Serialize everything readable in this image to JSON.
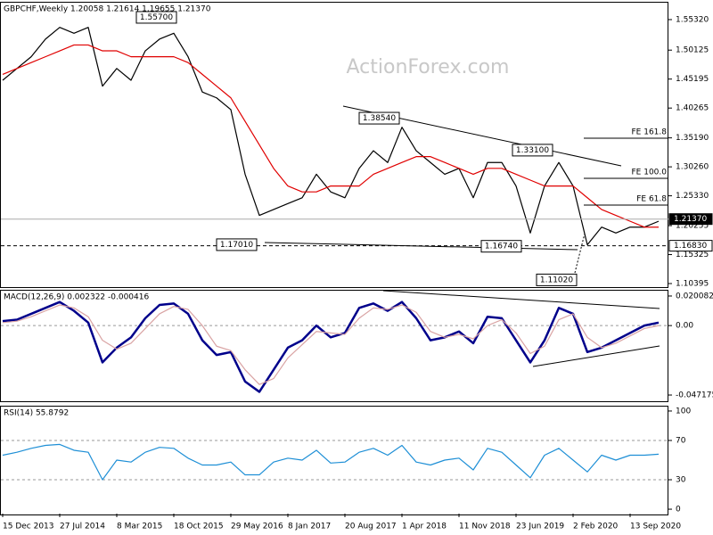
{
  "chart_data": [
    {
      "type": "line",
      "title": "GBPCHF,Weekly  1.20058 1.21614 1.19655 1.21370",
      "watermark": "ActionForex.com",
      "ylim": [
        1.0979,
        1.582
      ],
      "yticks": [
        {
          "value": 1.5532,
          "label": "1.55320"
        },
        1.50125,
        1.45195,
        1.40265,
        {
          "value": 1.3519,
          "label": "1.35190"
        },
        {
          "value": 1.3026,
          "label": "1.30260"
        },
        {
          "value": 1.2533,
          "label": "1.25330"
        },
        1.20255,
        1.15325,
        1.10395
      ],
      "series": [
        {
          "color": "#000000",
          "values": [
            1.45,
            1.47,
            1.49,
            1.52,
            1.54,
            1.53,
            1.54,
            1.44,
            1.47,
            1.45,
            1.5,
            1.52,
            1.53,
            1.49,
            1.43,
            1.42,
            1.4,
            1.29,
            1.22,
            1.23,
            1.24,
            1.25,
            1.29,
            1.26,
            1.25,
            1.3,
            1.33,
            1.31,
            1.37,
            1.33,
            1.31,
            1.29,
            1.3,
            1.25,
            1.31,
            1.31,
            1.27,
            1.19,
            1.27,
            1.31,
            1.27,
            1.17,
            1.2,
            1.19,
            1.2,
            1.2,
            1.21
          ]
        },
        {
          "color": "#e00000",
          "values": [
            1.46,
            1.47,
            1.48,
            1.49,
            1.5,
            1.51,
            1.51,
            1.5,
            1.5,
            1.49,
            1.49,
            1.49,
            1.49,
            1.48,
            1.46,
            1.44,
            1.42,
            1.38,
            1.34,
            1.3,
            1.27,
            1.26,
            1.26,
            1.27,
            1.27,
            1.27,
            1.29,
            1.3,
            1.31,
            1.32,
            1.32,
            1.31,
            1.3,
            1.29,
            1.3,
            1.3,
            1.29,
            1.28,
            1.27,
            1.27,
            1.27,
            1.25,
            1.23,
            1.22,
            1.21,
            1.2,
            1.2
          ]
        }
      ],
      "annotations": [
        {
          "value": 1.557,
          "label": "1.55700"
        },
        {
          "value": 1.3854,
          "label": "1.38540"
        },
        {
          "value": 1.331,
          "label": "1.33100"
        },
        {
          "value": 1.1701,
          "label": "1.17010"
        },
        {
          "value": 1.1674,
          "label": "1.16740"
        },
        {
          "value": 1.1102,
          "label": "1.11020"
        }
      ],
      "price_levels": [
        {
          "value": 1.2137,
          "label": "1.21370"
        },
        {
          "value": 1.1683,
          "label": "1.16830"
        }
      ],
      "fibo_levels": [
        {
          "label": "FE 161.8",
          "value": 1.3514
        },
        {
          "label": "FE 100.0",
          "value": 1.283
        },
        {
          "label": "FE 61.8",
          "value": 1.2375
        }
      ]
    },
    {
      "type": "line",
      "title": "MACD(12,26,9) 0.002322 -0.000416",
      "ylim": [
        -0.0514,
        0.0237
      ],
      "yticks": [
        0.020082,
        {
          "value": 0,
          "label": "0.00"
        },
        -0.047175
      ],
      "series": [
        {
          "color": "#00008b",
          "values": [
            0.003,
            0.004,
            0.008,
            0.012,
            0.016,
            0.01,
            0.002,
            -0.025,
            -0.015,
            -0.008,
            0.005,
            0.014,
            0.015,
            0.008,
            -0.01,
            -0.02,
            -0.018,
            -0.038,
            -0.045,
            -0.03,
            -0.015,
            -0.01,
            0.0,
            -0.008,
            -0.005,
            0.012,
            0.015,
            0.01,
            0.016,
            0.005,
            -0.01,
            -0.008,
            -0.004,
            -0.012,
            0.006,
            0.005,
            -0.01,
            -0.025,
            -0.01,
            0.012,
            0.008,
            -0.018,
            -0.015,
            -0.01,
            -0.005,
            0.0,
            0.002
          ]
        },
        {
          "color": "#d9a3a3",
          "values": [
            0.002,
            0.003,
            0.006,
            0.01,
            0.014,
            0.012,
            0.006,
            -0.01,
            -0.016,
            -0.012,
            -0.002,
            0.008,
            0.013,
            0.011,
            0.0,
            -0.014,
            -0.017,
            -0.03,
            -0.04,
            -0.036,
            -0.022,
            -0.013,
            -0.004,
            -0.005,
            -0.006,
            0.005,
            0.012,
            0.011,
            0.014,
            0.009,
            -0.004,
            -0.008,
            -0.006,
            -0.009,
            0.0,
            0.004,
            -0.005,
            -0.019,
            -0.014,
            0.004,
            0.008,
            -0.008,
            -0.015,
            -0.012,
            -0.007,
            -0.002,
            0.0
          ]
        }
      ]
    },
    {
      "type": "line",
      "title": "RSI(14) 55.8792",
      "ylim": [
        -4.5,
        104.5
      ],
      "yticks": [
        100,
        70,
        30,
        0
      ],
      "categories": [
        "15 Dec 2013",
        null,
        null,
        null,
        "27 Jul 2014",
        null,
        null,
        null,
        "8 Mar 2015",
        null,
        null,
        null,
        "18 Oct 2015",
        null,
        null,
        null,
        "29 May 2016",
        null,
        null,
        null,
        "8 Jan 2017",
        null,
        null,
        null,
        "20 Aug 2017",
        null,
        null,
        null,
        "1 Apr 2018",
        null,
        null,
        null,
        "11 Nov 2018",
        null,
        null,
        null,
        "23 Jun 2019",
        null,
        null,
        null,
        "2 Feb 2020",
        null,
        null,
        null,
        "13 Sep 2020",
        null,
        null
      ],
      "series": [
        {
          "color": "#1e8fd6",
          "values": [
            55,
            58,
            62,
            65,
            66,
            60,
            58,
            30,
            50,
            48,
            58,
            63,
            62,
            52,
            45,
            45,
            48,
            35,
            35,
            48,
            52,
            50,
            60,
            47,
            48,
            58,
            62,
            55,
            65,
            48,
            45,
            50,
            52,
            40,
            62,
            58,
            45,
            32,
            55,
            62,
            50,
            38,
            55,
            50,
            55,
            55,
            56
          ]
        }
      ]
    }
  ]
}
